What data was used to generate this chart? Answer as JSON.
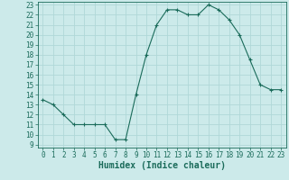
{
  "x": [
    0,
    1,
    2,
    3,
    4,
    5,
    6,
    7,
    8,
    9,
    10,
    11,
    12,
    13,
    14,
    15,
    16,
    17,
    18,
    19,
    20,
    21,
    22,
    23
  ],
  "y": [
    13.5,
    13.0,
    12.0,
    11.0,
    11.0,
    11.0,
    11.0,
    9.5,
    9.5,
    14.0,
    18.0,
    21.0,
    22.5,
    22.5,
    22.0,
    22.0,
    23.0,
    22.5,
    21.5,
    20.0,
    17.5,
    15.0,
    14.5,
    14.5
  ],
  "ylim": [
    9,
    23
  ],
  "xlim": [
    -0.5,
    23.5
  ],
  "yticks": [
    9,
    10,
    11,
    12,
    13,
    14,
    15,
    16,
    17,
    18,
    19,
    20,
    21,
    22,
    23
  ],
  "xticks": [
    0,
    1,
    2,
    3,
    4,
    5,
    6,
    7,
    8,
    9,
    10,
    11,
    12,
    13,
    14,
    15,
    16,
    17,
    18,
    19,
    20,
    21,
    22,
    23
  ],
  "xlabel": "Humidex (Indice chaleur)",
  "line_color": "#1a6b5a",
  "marker": "+",
  "bg_color": "#cceaea",
  "grid_color": "#b0d8d8",
  "spine_color": "#1a6b5a",
  "label_fontsize": 7,
  "tick_fontsize": 5.5
}
